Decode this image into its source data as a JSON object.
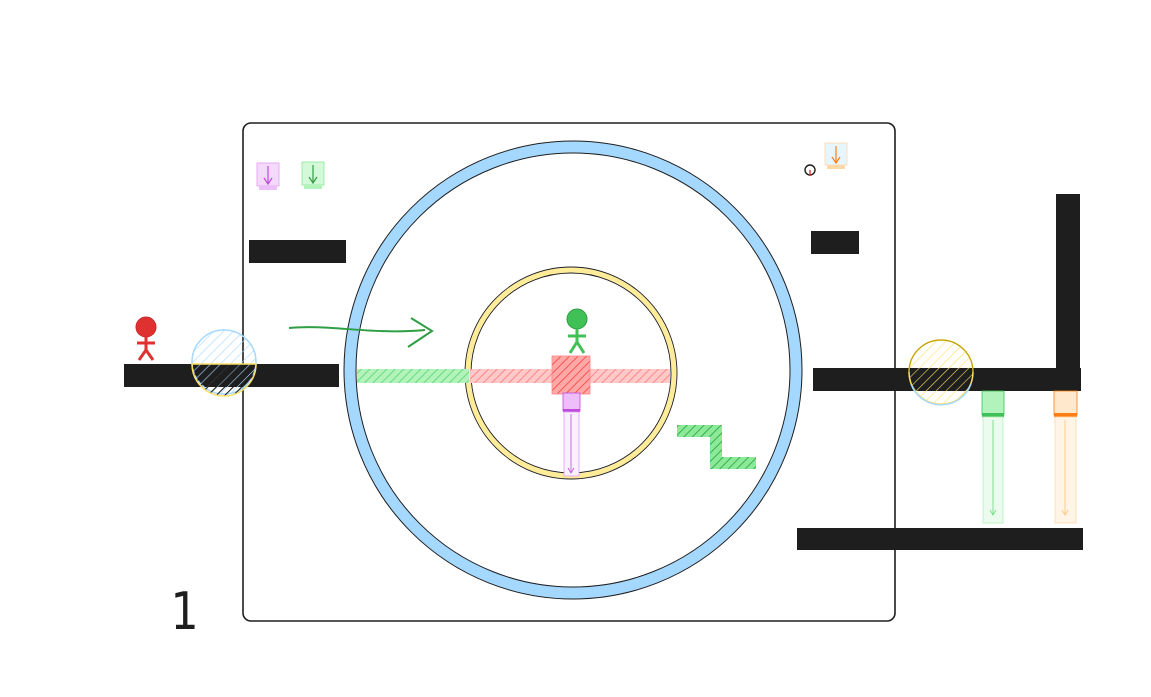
{
  "level": {
    "number": "1"
  },
  "colors": {
    "ink": "#1e1e1e",
    "outer_ring": "#a5d8ff",
    "inner_ring": "#ffec99",
    "red": "#e03131",
    "green": "#40c057",
    "purple": "#be4bdb",
    "orange": "#fd7e14",
    "pink_bar": "#ff8787",
    "green_bar": "#8ce99a"
  },
  "players": [
    {
      "name": "red-player",
      "color": "red"
    },
    {
      "name": "green-player",
      "color": "green"
    }
  ],
  "icons": [
    "stick-figure-icon",
    "down-arrow-icon",
    "target-icon",
    "curved-arrow-icon",
    "hatched-bubble-icon"
  ]
}
